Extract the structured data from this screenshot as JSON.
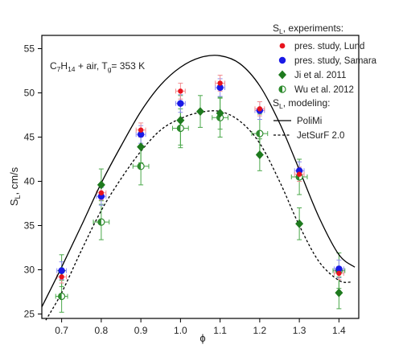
{
  "chart_data": {
    "type": "scatter",
    "annotation": {
      "main": "C",
      "mid1": "7",
      "sub_h": "H",
      "mid2": "14",
      "rest": " + air, T",
      "sub_g": "g",
      "tail": "= 353 K"
    },
    "xlabel": "ϕ",
    "ylabel": {
      "main": "S",
      "sub": "L",
      "rest": ", cm/s"
    },
    "xlim": [
      0.65,
      1.45
    ],
    "ylim": [
      24.5,
      56.5
    ],
    "xticks": [
      0.7,
      0.8,
      0.9,
      1.0,
      1.1,
      1.2,
      1.3,
      1.4
    ],
    "xtick_labels": [
      "0.7",
      "0.8",
      "0.9",
      "1.0",
      "1.1",
      "1.2",
      "1.3",
      "1.4"
    ],
    "yticks": [
      25,
      30,
      35,
      40,
      45,
      50,
      55
    ],
    "ytick_labels": [
      "25",
      "30",
      "35",
      "40",
      "45",
      "50",
      "55"
    ],
    "legend": {
      "placement": "top-right",
      "header_experiments": {
        "main": "S",
        "sub": "L",
        "rest": ", experiments:"
      },
      "header_modeling": {
        "main": "S",
        "sub": "L",
        "rest": ", modeling:"
      }
    },
    "series": [
      {
        "name": "pres. study, Lund",
        "marker": "circle",
        "color": "#e8141e",
        "errcolor": "#f28c90",
        "points": [
          {
            "x": 0.7,
            "y": 29.2,
            "ex": 0.012,
            "ey": 0.7
          },
          {
            "x": 0.8,
            "y": 38.7,
            "ex": 0.012,
            "ey": 0.8
          },
          {
            "x": 0.9,
            "y": 45.8,
            "ex": 0.012,
            "ey": 0.8
          },
          {
            "x": 1.0,
            "y": 50.2,
            "ex": 0.012,
            "ey": 0.9
          },
          {
            "x": 1.1,
            "y": 51.1,
            "ex": 0.012,
            "ey": 0.9
          },
          {
            "x": 1.2,
            "y": 48.2,
            "ex": 0.012,
            "ey": 0.8
          },
          {
            "x": 1.3,
            "y": 40.8,
            "ex": 0.012,
            "ey": 0.8
          },
          {
            "x": 1.4,
            "y": 29.6,
            "ex": 0.012,
            "ey": 0.7
          }
        ]
      },
      {
        "name": "pres. study, Samara",
        "marker": "circle",
        "color": "#1a1ae6",
        "errcolor": "#8f8ff2",
        "points": [
          {
            "x": 0.7,
            "y": 29.9,
            "ex": 0.012,
            "ey": 1.0
          },
          {
            "x": 0.8,
            "y": 38.3,
            "ex": 0.012,
            "ey": 1.0
          },
          {
            "x": 0.9,
            "y": 45.3,
            "ex": 0.012,
            "ey": 1.0
          },
          {
            "x": 1.0,
            "y": 48.8,
            "ex": 0.012,
            "ey": 1.0
          },
          {
            "x": 1.1,
            "y": 50.6,
            "ex": 0.012,
            "ey": 1.0
          },
          {
            "x": 1.2,
            "y": 48.0,
            "ex": 0.012,
            "ey": 1.0
          },
          {
            "x": 1.3,
            "y": 41.2,
            "ex": 0.012,
            "ey": 1.0
          },
          {
            "x": 1.4,
            "y": 30.1,
            "ex": 0.012,
            "ey": 1.0
          }
        ]
      },
      {
        "name": "Ji et al. 2011",
        "marker": "diamond",
        "color": "#1e7a1e",
        "errcolor": "#4aa84a",
        "points": [
          {
            "x": 0.7,
            "y": 29.9,
            "ex": 0.0,
            "ey": 1.8
          },
          {
            "x": 0.8,
            "y": 39.6,
            "ex": 0.0,
            "ey": 1.8
          },
          {
            "x": 0.9,
            "y": 43.9,
            "ex": 0.0,
            "ey": 1.8
          },
          {
            "x": 1.0,
            "y": 46.9,
            "ex": 0.0,
            "ey": 2.8
          },
          {
            "x": 1.05,
            "y": 47.9,
            "ex": 0.0,
            "ey": 1.8
          },
          {
            "x": 1.1,
            "y": 47.7,
            "ex": 0.0,
            "ey": 1.8
          },
          {
            "x": 1.2,
            "y": 43.0,
            "ex": 0.0,
            "ey": 1.8
          },
          {
            "x": 1.3,
            "y": 35.2,
            "ex": 0.0,
            "ey": 1.8
          },
          {
            "x": 1.4,
            "y": 27.4,
            "ex": 0.0,
            "ey": 1.8
          }
        ]
      },
      {
        "name": "Wu et al. 2012",
        "marker": "halfcircle",
        "color": "#2e8b2e",
        "errcolor": "#4aa84a",
        "points": [
          {
            "x": 0.7,
            "y": 27.0,
            "ex": 0.015,
            "ey": 1.8
          },
          {
            "x": 0.8,
            "y": 35.4,
            "ex": 0.02,
            "ey": 2.0
          },
          {
            "x": 0.9,
            "y": 41.7,
            "ex": 0.02,
            "ey": 2.1
          },
          {
            "x": 1.0,
            "y": 46.0,
            "ex": 0.02,
            "ey": 2.2
          },
          {
            "x": 1.1,
            "y": 47.2,
            "ex": 0.02,
            "ey": 2.2
          },
          {
            "x": 1.2,
            "y": 45.4,
            "ex": 0.02,
            "ey": 2.2
          },
          {
            "x": 1.3,
            "y": 40.5,
            "ex": 0.02,
            "ey": 2.0
          },
          {
            "x": 1.4,
            "y": 29.9,
            "ex": 0.015,
            "ey": 2.0
          }
        ]
      }
    ],
    "model_curves": [
      {
        "name": "PoliMi",
        "style": "solid",
        "color": "#000000",
        "x": [
          0.65,
          0.7,
          0.75,
          0.8,
          0.85,
          0.9,
          0.95,
          1.0,
          1.05,
          1.1,
          1.15,
          1.2,
          1.25,
          1.3,
          1.35,
          1.4,
          1.44
        ],
        "y": [
          25.8,
          30.3,
          35.0,
          39.8,
          44.0,
          47.9,
          50.9,
          52.9,
          54.0,
          54.2,
          53.3,
          50.8,
          46.6,
          41.3,
          35.9,
          31.7,
          30.3
        ]
      },
      {
        "name": "JetSurF 2.0",
        "style": "dashed",
        "color": "#000000",
        "x": [
          0.66,
          0.7,
          0.75,
          0.8,
          0.85,
          0.9,
          0.95,
          1.0,
          1.05,
          1.1,
          1.15,
          1.2,
          1.25,
          1.3,
          1.35,
          1.4,
          1.43
        ],
        "y": [
          24.3,
          27.4,
          32.2,
          36.7,
          40.3,
          43.4,
          45.8,
          47.1,
          47.8,
          47.9,
          46.8,
          44.3,
          40.0,
          35.0,
          30.9,
          28.8,
          28.6
        ]
      }
    ],
    "grid": false
  }
}
